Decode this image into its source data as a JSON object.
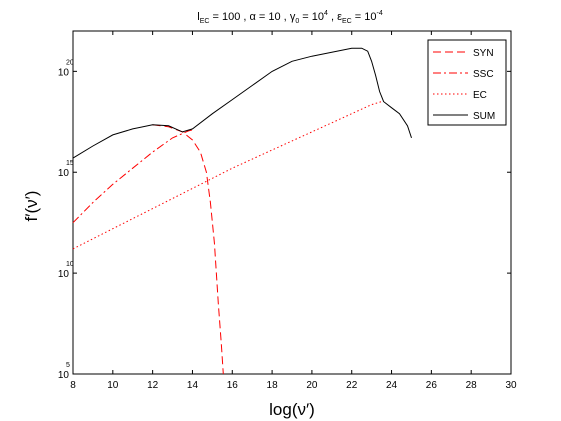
{
  "chart_data": {
    "type": "line",
    "title_parts": {
      "l": "l",
      "l_sub": "EC",
      "l_eq": " = 100 , ",
      "alpha": "α = 10 , ",
      "gamma": "γ",
      "gamma_sub": "0",
      "gamma_eq": " = 10",
      "gamma_sup": "4",
      "sep": " , ",
      "eps": "ε",
      "eps_sub": "EC",
      "eps_eq": " = 10",
      "eps_sup": "-4"
    },
    "xlabel": "log(ν′)",
    "ylabel": "f′(ν′)",
    "x_ticks": [
      8,
      10,
      12,
      14,
      16,
      18,
      20,
      22,
      24,
      26,
      28,
      30
    ],
    "y_ticks": [
      {
        "exp": 5,
        "base": "10",
        "sup": "5"
      },
      {
        "exp": 10,
        "base": "10",
        "sup": "10"
      },
      {
        "exp": 15,
        "base": "10",
        "sup": "15"
      },
      {
        "exp": 20,
        "base": "10",
        "sup": "20"
      }
    ],
    "xlim": [
      8,
      30
    ],
    "ylim": [
      5,
      22
    ],
    "y_scale": "log",
    "legend_position": "top-right",
    "series": [
      {
        "name": "SYN",
        "style": "dashed",
        "color": "#ff0000",
        "x": [
          12.0,
          12.8,
          13.5,
          14.0,
          14.4,
          14.7,
          14.9,
          15.1,
          15.3,
          15.45,
          15.55
        ],
        "y": [
          17.35,
          17.25,
          17.0,
          16.6,
          16.0,
          15.0,
          13.5,
          11.5,
          8.5,
          6.5,
          5.0
        ]
      },
      {
        "name": "SSC",
        "style": "dashdot",
        "color": "#ff0000",
        "x": [
          8.0,
          9.0,
          10.0,
          11.0,
          12.0,
          13.0,
          13.8,
          14.0
        ],
        "y": [
          12.5,
          13.5,
          14.4,
          15.2,
          16.0,
          16.7,
          17.05,
          17.1
        ]
      },
      {
        "name": "EC",
        "style": "dotted",
        "color": "#ff0000",
        "x": [
          8.0,
          10.0,
          12.0,
          14.0,
          16.0,
          18.0,
          20.0,
          22.0,
          23.0,
          23.5
        ],
        "y": [
          11.2,
          12.2,
          13.2,
          14.2,
          15.2,
          16.1,
          17.0,
          17.9,
          18.35,
          18.5
        ]
      },
      {
        "name": "SUM",
        "style": "solid",
        "color": "#000000",
        "x": [
          8.0,
          9.0,
          10.0,
          11.0,
          12.0,
          12.8,
          13.5,
          14.0,
          15.0,
          16.0,
          17.0,
          18.0,
          19.0,
          20.0,
          21.0,
          22.0,
          22.5,
          22.8,
          23.0,
          23.2,
          23.4,
          23.6,
          24.0,
          24.4,
          24.8,
          25.0
        ],
        "y": [
          15.7,
          16.3,
          16.85,
          17.15,
          17.35,
          17.3,
          17.0,
          17.15,
          17.9,
          18.6,
          19.3,
          20.0,
          20.5,
          20.75,
          20.95,
          21.15,
          21.15,
          21.0,
          20.5,
          19.8,
          19.0,
          18.5,
          18.2,
          17.9,
          17.3,
          16.7
        ]
      }
    ]
  }
}
